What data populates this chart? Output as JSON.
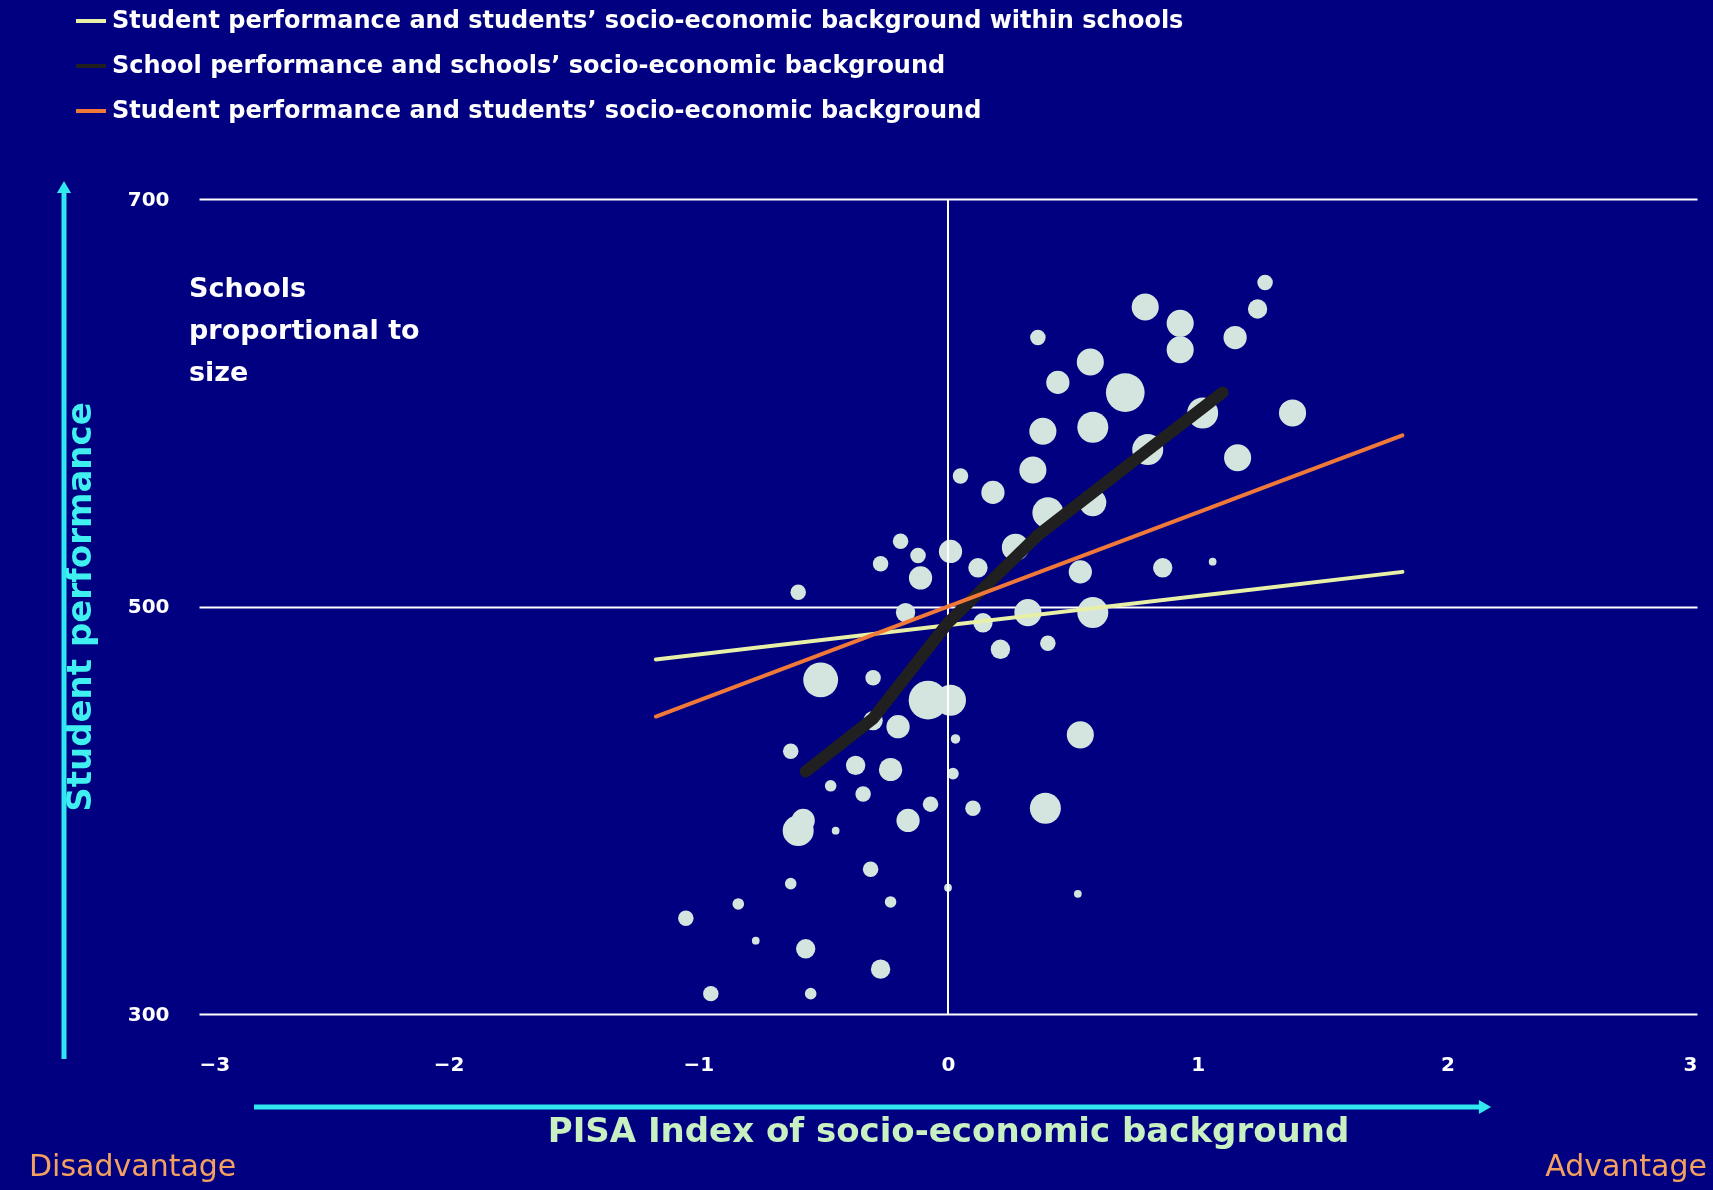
{
  "chart_data": {
    "type": "bubble",
    "xlabel": "PISA Index of socio-economic background",
    "ylabel": "Student performance",
    "annotations": [
      "Schools proportional to size",
      "Disadvantage",
      "Advantage"
    ],
    "xlim": [
      -3,
      3
    ],
    "xticks": [
      -3,
      -2,
      -1,
      0,
      1,
      2,
      3
    ],
    "ylim": [
      300,
      700
    ],
    "yticks": [
      300,
      500,
      700
    ],
    "grid": "y",
    "legend": "top",
    "ref_lines": [
      {
        "axis": "x",
        "value": 0,
        "color": "#ffffff"
      }
    ],
    "series": [
      {
        "color": "#d4e5e0",
        "x": [
          1.27,
          1.24,
          1.15,
          0.79,
          0.93,
          0.36,
          0.57,
          0.93,
          0.44,
          0.71,
          1.02,
          1.38,
          0.38,
          0.58,
          1.16,
          0.8,
          0.05,
          0.18,
          0.34,
          0.4,
          0.58,
          -0.19,
          -0.12,
          -0.27,
          -0.6,
          -0.11,
          0.01,
          0.12,
          0.27,
          0.53,
          0.86,
          1.06,
          0.58,
          0.32,
          0.14,
          -0.17,
          0.21,
          0.4,
          -0.51,
          -0.3,
          -0.08,
          0.01,
          -0.2,
          -0.3,
          0.03,
          0.53,
          -0.63,
          -0.37,
          -0.23,
          0.02,
          -0.47,
          -0.34,
          -0.07,
          -0.16,
          0.1,
          0.39,
          -0.6,
          -0.58,
          -0.45,
          -0.31,
          -0.63,
          -0.23,
          0.0,
          0.52,
          -1.05,
          -0.84,
          -0.77,
          -0.57,
          -0.27,
          -0.95,
          -0.55
        ],
        "values": [
          659,
          646,
          632,
          647,
          639,
          632,
          620,
          626,
          610,
          605,
          595,
          595,
          586,
          588,
          573,
          577,
          564,
          556,
          567,
          546,
          551,
          532,
          525,
          521,
          507,
          514,
          527,
          519,
          529,
          517,
          519,
          522,
          497,
          497,
          492,
          497,
          479,
          482,
          464,
          465,
          454,
          454,
          441,
          444,
          435,
          437,
          429,
          422,
          420,
          418,
          412,
          408,
          403,
          395,
          401,
          401,
          390,
          395,
          390,
          371,
          364,
          355,
          362,
          359,
          347,
          354,
          336,
          332,
          322,
          310,
          310
        ],
        "sizes": [
          0.16,
          0.25,
          0.36,
          0.49,
          0.49,
          0.16,
          0.49,
          0.49,
          0.36,
          1,
          0.64,
          0.49,
          0.49,
          0.64,
          0.49,
          0.64,
          0.16,
          0.36,
          0.49,
          0.64,
          0.49,
          0.16,
          0.16,
          0.16,
          0.16,
          0.36,
          0.36,
          0.25,
          0.49,
          0.36,
          0.25,
          0.04,
          0.64,
          0.49,
          0.25,
          0.25,
          0.25,
          0.16,
          0.81,
          0.16,
          1,
          0.64,
          0.36,
          0.25,
          0.06,
          0.49,
          0.16,
          0.25,
          0.36,
          0.09,
          0.09,
          0.16,
          0.16,
          0.36,
          0.16,
          0.64,
          0.64,
          0.36,
          0.04,
          0.16,
          0.09,
          0.09,
          0.04,
          0.04,
          0.16,
          0.09,
          0.04,
          0.25,
          0.25,
          0.16,
          0.09
        ]
      },
      {
        "type": "line",
        "name": "Student performance and students’ socio-economic background within schools",
        "color": "#e8f0a8",
        "x": [
          -1.17,
          1.82
        ],
        "values": [
          474,
          517
        ]
      },
      {
        "type": "line",
        "name": "School performance and schools’ socio-economic background",
        "color": "#202020",
        "x": [
          -0.57,
          -0.3,
          0,
          0.36,
          0.75,
          1.1
        ],
        "values": [
          419,
          445,
          492,
          535,
          572,
          605
        ]
      },
      {
        "type": "line",
        "name": "Student performance and students’ socio-economic background",
        "color": "#f07838",
        "x": [
          -1.17,
          1.82
        ],
        "values": [
          446,
          584
        ]
      }
    ]
  }
}
